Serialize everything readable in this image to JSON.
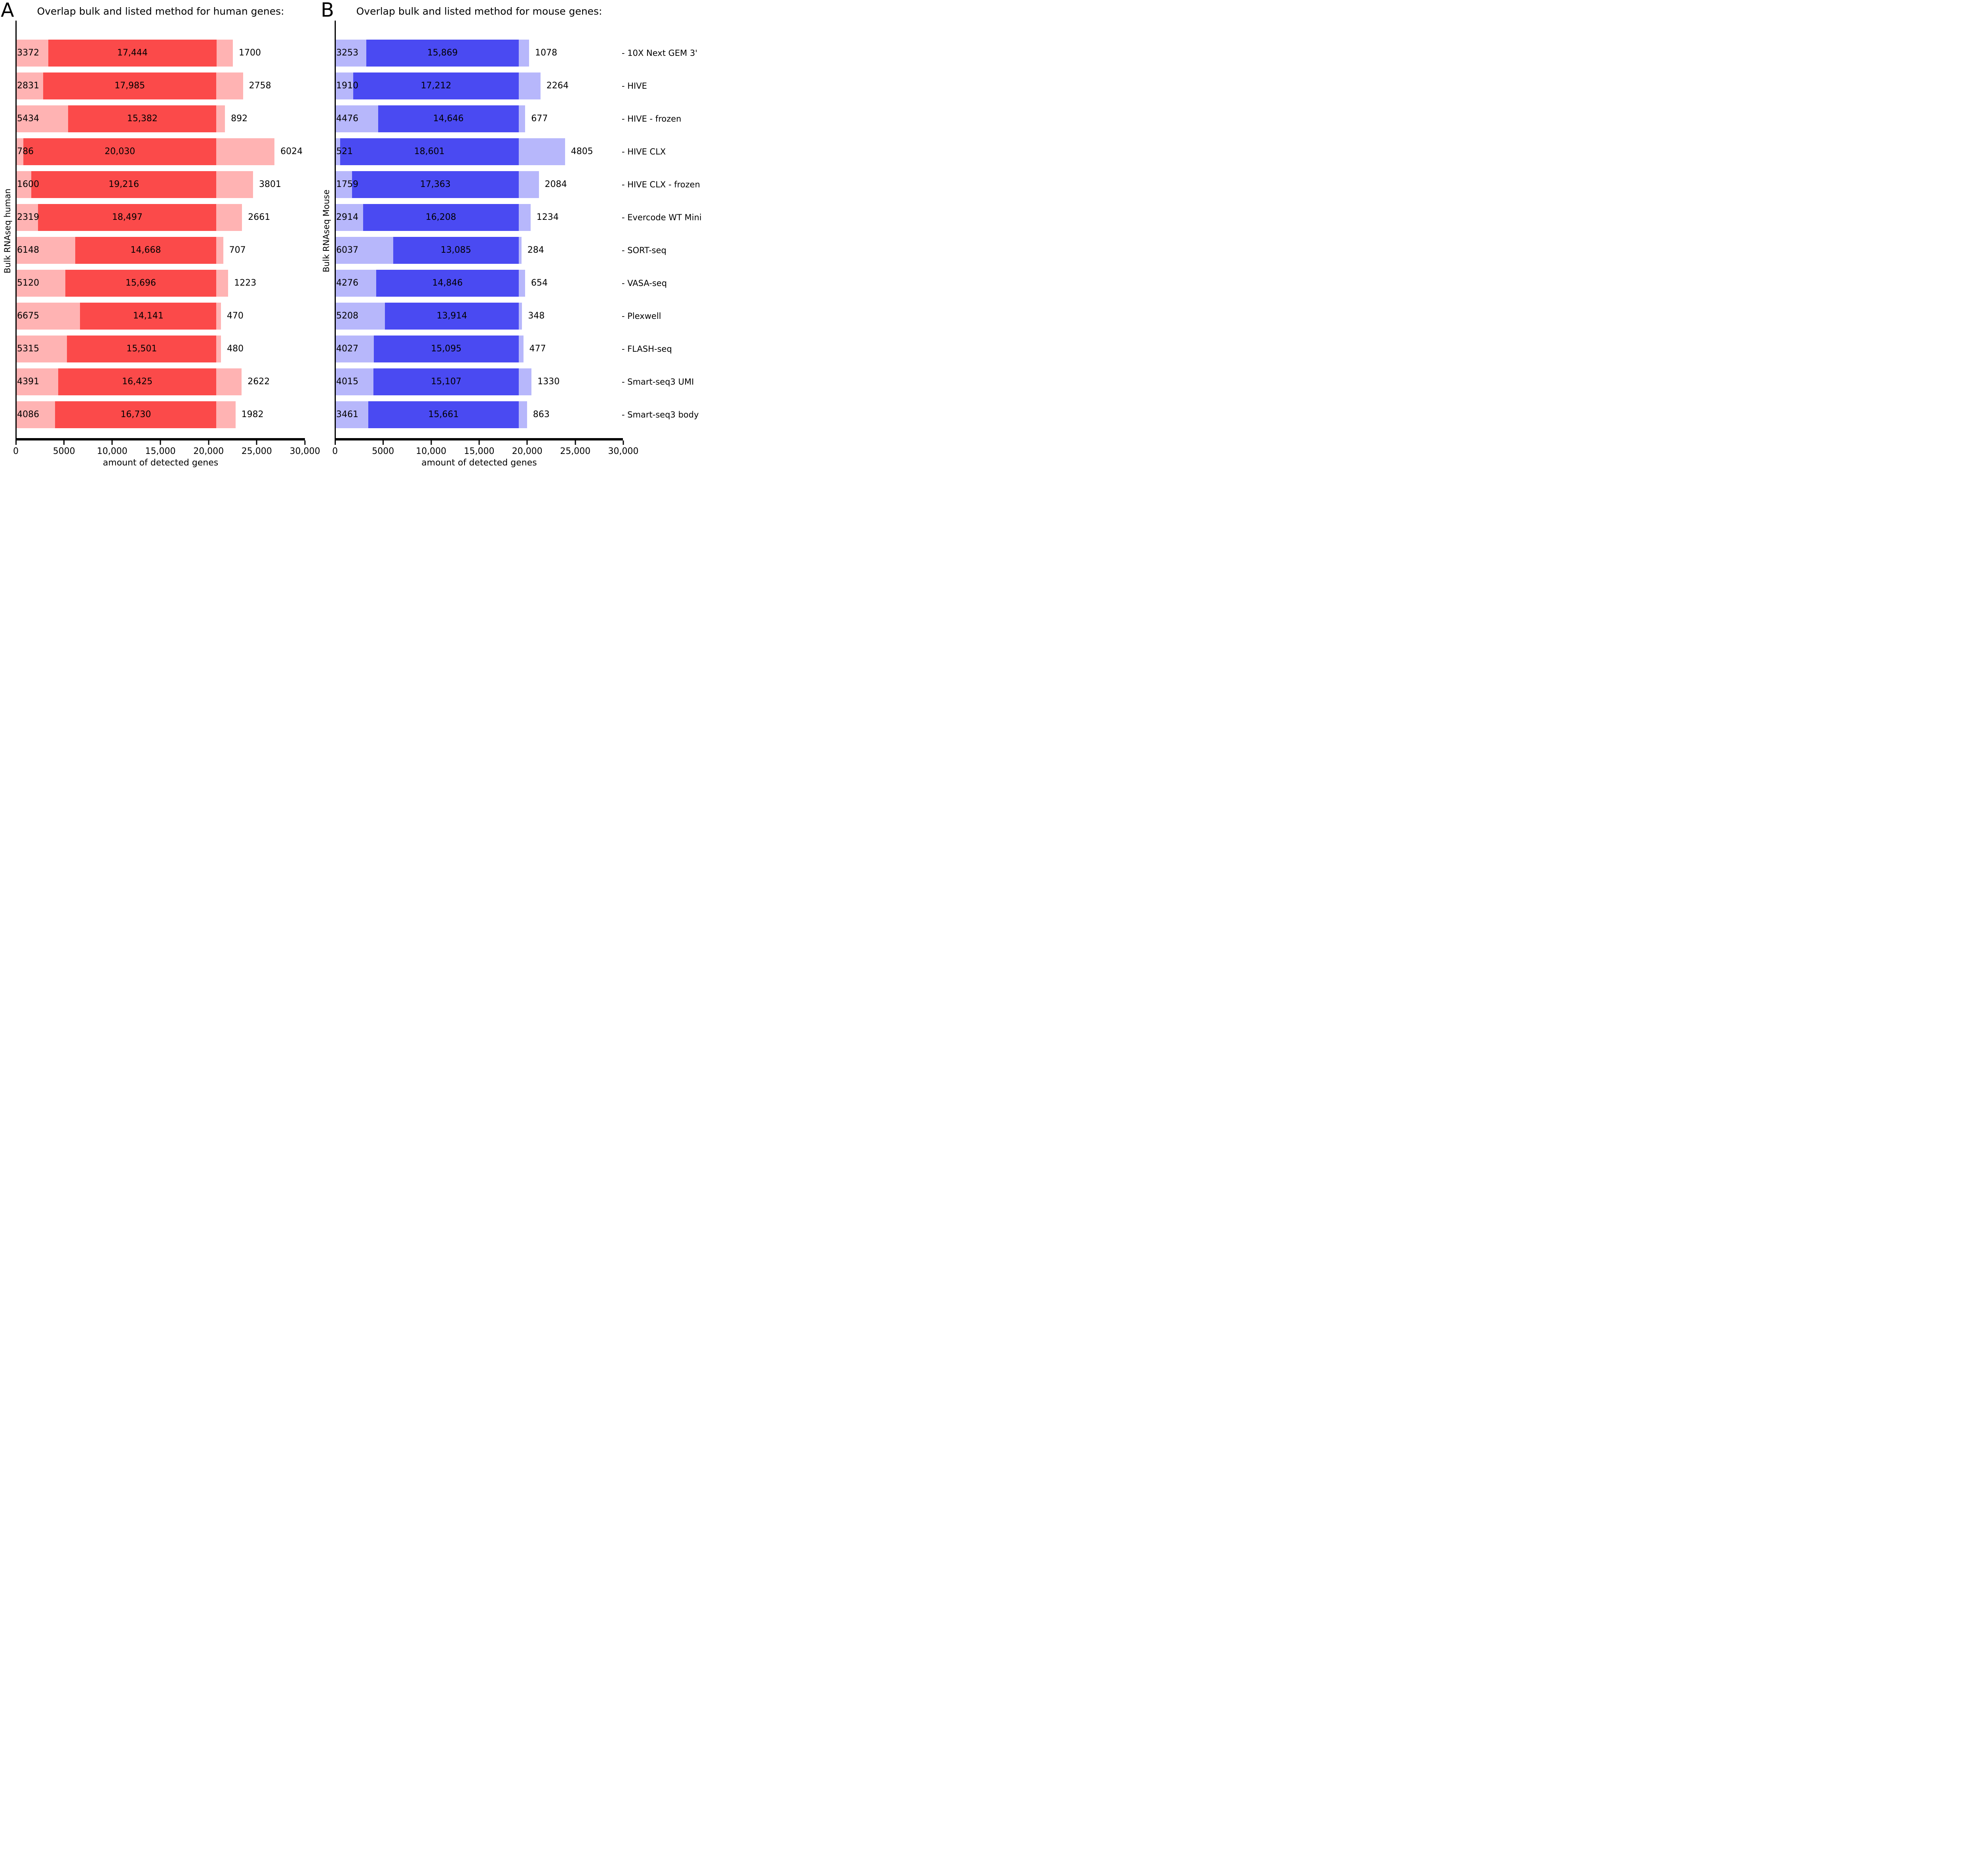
{
  "figure": {
    "panels": [
      {
        "letter": "A",
        "title": "Overlap bulk and listed method for human genes:",
        "ylabel": "Bulk RNAseq human"
      },
      {
        "letter": "B",
        "title": "Overlap bulk and listed method for mouse genes:",
        "ylabel": "Bulk RNAseq Mouse"
      }
    ],
    "methods": [
      "10X Next GEM 3'",
      "HIVE",
      "HIVE - frozen",
      "HIVE CLX",
      "HIVE CLX - frozen",
      "Evercode WT Mini",
      "SORT-seq",
      "VASA-seq",
      "Plexwell",
      "FLASH-seq",
      "Smart-seq3 UMI",
      "Smart-seq3 body"
    ],
    "method_label_prefix": "- "
  },
  "chart_data": [
    {
      "type": "bar",
      "orientation": "horizontal",
      "stacked": true,
      "panel": "A",
      "title": "Overlap bulk and listed method for human genes:",
      "ylabel": "Bulk RNAseq human",
      "xlabel": "amount of detected genes",
      "xlim": [
        0,
        30000
      ],
      "xticks": [
        0,
        5000,
        10000,
        15000,
        20000,
        25000,
        30000
      ],
      "xtick_labels": [
        "0",
        "5000",
        "10,000",
        "15,000",
        "20,000",
        "25,000",
        "30,000"
      ],
      "grid": false,
      "legend": "none",
      "segment_order": [
        "bulk_only",
        "overlap",
        "method_only"
      ],
      "segment_colors": {
        "bulk_only": "#ffb3b3",
        "overlap": "#fb4a4a",
        "method_only": "#ffb3b3"
      },
      "rows": [
        {
          "method": "10X Next GEM 3'",
          "bulk_only": 3372,
          "overlap": 17444,
          "method_only": 1700
        },
        {
          "method": "HIVE",
          "bulk_only": 2831,
          "overlap": 17985,
          "method_only": 2758
        },
        {
          "method": "HIVE - frozen",
          "bulk_only": 5434,
          "overlap": 15382,
          "method_only": 892
        },
        {
          "method": "HIVE CLX",
          "bulk_only": 786,
          "overlap": 20030,
          "method_only": 6024
        },
        {
          "method": "HIVE CLX - frozen",
          "bulk_only": 1600,
          "overlap": 19216,
          "method_only": 3801
        },
        {
          "method": "Evercode WT Mini",
          "bulk_only": 2319,
          "overlap": 18497,
          "method_only": 2661
        },
        {
          "method": "SORT-seq",
          "bulk_only": 6148,
          "overlap": 14668,
          "method_only": 707
        },
        {
          "method": "VASA-seq",
          "bulk_only": 5120,
          "overlap": 15696,
          "method_only": 1223
        },
        {
          "method": "Plexwell",
          "bulk_only": 6675,
          "overlap": 14141,
          "method_only": 470
        },
        {
          "method": "FLASH-seq",
          "bulk_only": 5315,
          "overlap": 15501,
          "method_only": 480
        },
        {
          "method": "Smart-seq3 UMI",
          "bulk_only": 4391,
          "overlap": 16425,
          "method_only": 2622
        },
        {
          "method": "Smart-seq3 body",
          "bulk_only": 4086,
          "overlap": 16730,
          "method_only": 1982
        }
      ]
    },
    {
      "type": "bar",
      "orientation": "horizontal",
      "stacked": true,
      "panel": "B",
      "title": "Overlap bulk and listed method for mouse genes:",
      "ylabel": "Bulk RNAseq Mouse",
      "xlabel": "amount of detected genes",
      "xlim": [
        0,
        30000
      ],
      "xticks": [
        0,
        5000,
        10000,
        15000,
        20000,
        25000,
        30000
      ],
      "xtick_labels": [
        "0",
        "5000",
        "10,000",
        "15,000",
        "20,000",
        "25,000",
        "30,000"
      ],
      "grid": false,
      "legend": "none",
      "segment_order": [
        "bulk_only",
        "overlap",
        "method_only"
      ],
      "segment_colors": {
        "bulk_only": "#b7b7fb",
        "overlap": "#4a4af2",
        "method_only": "#b7b7fb"
      },
      "rows": [
        {
          "method": "10X Next GEM 3'",
          "bulk_only": 3253,
          "overlap": 15869,
          "method_only": 1078
        },
        {
          "method": "HIVE",
          "bulk_only": 1910,
          "overlap": 17212,
          "method_only": 2264
        },
        {
          "method": "HIVE - frozen",
          "bulk_only": 4476,
          "overlap": 14646,
          "method_only": 677
        },
        {
          "method": "HIVE CLX",
          "bulk_only": 521,
          "overlap": 18601,
          "method_only": 4805
        },
        {
          "method": "HIVE CLX - frozen",
          "bulk_only": 1759,
          "overlap": 17363,
          "method_only": 2084
        },
        {
          "method": "Evercode WT Mini",
          "bulk_only": 2914,
          "overlap": 16208,
          "method_only": 1234
        },
        {
          "method": "SORT-seq",
          "bulk_only": 6037,
          "overlap": 13085,
          "method_only": 284
        },
        {
          "method": "VASA-seq",
          "bulk_only": 4276,
          "overlap": 14846,
          "method_only": 654
        },
        {
          "method": "Plexwell",
          "bulk_only": 5208,
          "overlap": 13914,
          "method_only": 348
        },
        {
          "method": "FLASH-seq",
          "bulk_only": 4027,
          "overlap": 15095,
          "method_only": 477
        },
        {
          "method": "Smart-seq3 UMI",
          "bulk_only": 4015,
          "overlap": 15107,
          "method_only": 1330
        },
        {
          "method": "Smart-seq3 body",
          "bulk_only": 3461,
          "overlap": 15661,
          "method_only": 863
        }
      ]
    }
  ]
}
